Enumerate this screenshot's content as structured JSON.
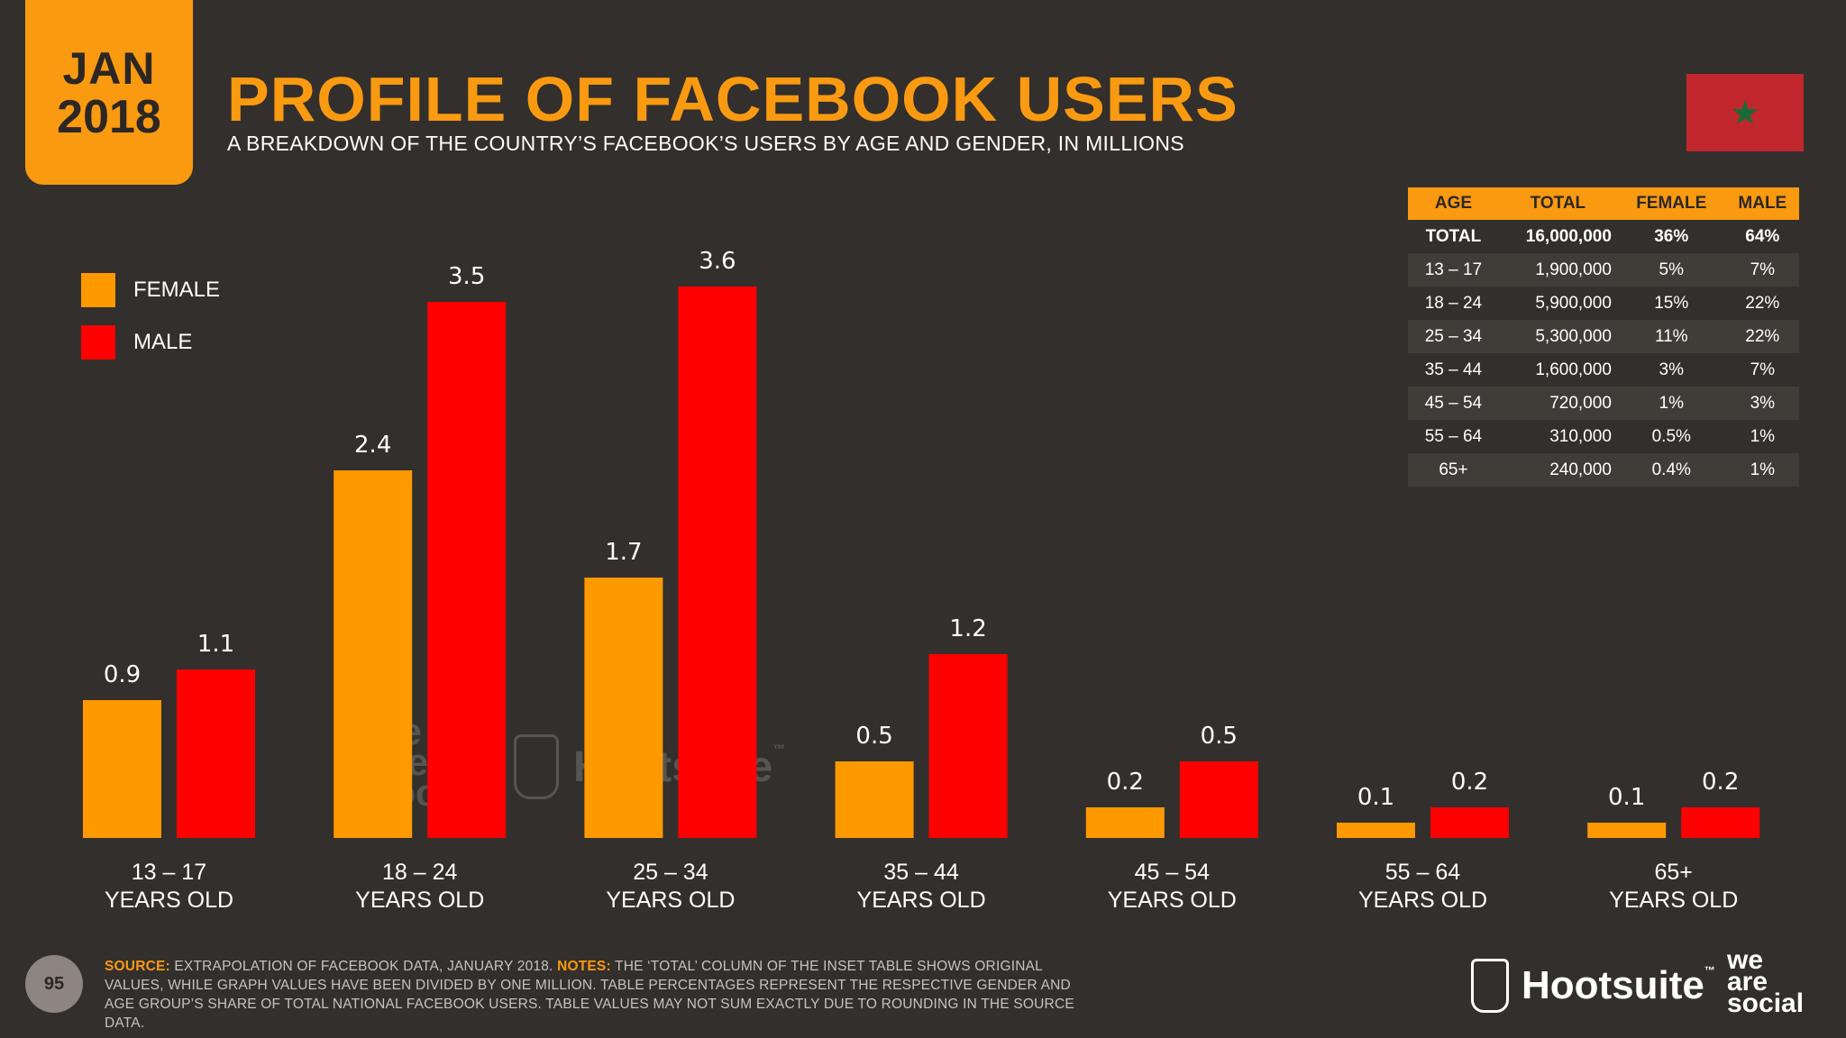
{
  "header": {
    "month": "JAN",
    "year": "2018",
    "title": "PROFILE OF FACEBOOK USERS",
    "subtitle": "A BREAKDOWN OF THE COUNTRY’S FACEBOOK’S USERS BY AGE AND GENDER, IN MILLIONS",
    "flag_icon": "morocco-flag-icon",
    "flag_color": "#c1272d",
    "star_color": "#1a6b35"
  },
  "legend": {
    "female": "FEMALE",
    "male": "MALE"
  },
  "colors": {
    "female": "#ff9900",
    "male": "#ff0000",
    "accent": "#fa9a11",
    "background": "#332f2c"
  },
  "chart_data": {
    "type": "bar",
    "categories": [
      [
        "13 – 17",
        "YEARS OLD"
      ],
      [
        "18 – 24",
        "YEARS OLD"
      ],
      [
        "25 – 34",
        "YEARS OLD"
      ],
      [
        "35 – 44",
        "YEARS OLD"
      ],
      [
        "45 – 54",
        "YEARS OLD"
      ],
      [
        "55 – 64",
        "YEARS OLD"
      ],
      [
        "65+",
        "YEARS OLD"
      ]
    ],
    "series": [
      {
        "name": "FEMALE",
        "values": [
          0.9,
          2.4,
          1.7,
          0.5,
          0.2,
          0.1,
          0.1
        ],
        "color": "#ff9900"
      },
      {
        "name": "MALE",
        "values": [
          1.1,
          3.5,
          3.6,
          1.2,
          0.5,
          0.2,
          0.2
        ],
        "color": "#ff0000"
      }
    ],
    "data_labels": [
      [
        "0.9",
        "2.4",
        "1.7",
        "0.5",
        "0.2",
        "0.1",
        "0.1"
      ],
      [
        "1.1",
        "3.5",
        "3.6",
        "1.2",
        "0.5",
        "0.2",
        "0.2"
      ]
    ],
    "ylim": [
      0,
      3.6
    ],
    "grid": false,
    "legend_position": "left"
  },
  "table": {
    "headers": [
      "AGE",
      "TOTAL",
      "FEMALE",
      "MALE"
    ],
    "rows": [
      [
        "TOTAL",
        "16,000,000",
        "36%",
        "64%"
      ],
      [
        "13 – 17",
        "1,900,000",
        "5%",
        "7%"
      ],
      [
        "18 – 24",
        "5,900,000",
        "15%",
        "22%"
      ],
      [
        "25 – 34",
        "5,300,000",
        "11%",
        "22%"
      ],
      [
        "35 – 44",
        "1,600,000",
        "3%",
        "7%"
      ],
      [
        "45 – 54",
        "720,000",
        "1%",
        "3%"
      ],
      [
        "55 – 64",
        "310,000",
        "0.5%",
        "1%"
      ],
      [
        "65+",
        "240,000",
        "0.4%",
        "1%"
      ]
    ]
  },
  "watermark": {
    "was_lines": [
      "we",
      "are",
      "social"
    ],
    "hootsuite": "Hootsuite",
    "tm": "™"
  },
  "footer": {
    "page_number": "95",
    "source_label": "SOURCE:",
    "source_text": " EXTRAPOLATION OF FACEBOOK DATA, JANUARY 2018. ",
    "notes_label": "NOTES:",
    "notes_text": " THE ‘TOTAL’ COLUMN OF THE INSET TABLE SHOWS ORIGINAL VALUES, WHILE GRAPH VALUES HAVE BEEN DIVIDED BY ONE MILLION. TABLE PERCENTAGES REPRESENT THE RESPECTIVE GENDER AND AGE GROUP’S SHARE OF TOTAL NATIONAL FACEBOOK USERS. TABLE VALUES MAY NOT SUM EXACTLY DUE TO ROUNDING IN THE SOURCE DATA.",
    "hootsuite_brand": "Hootsuite",
    "tm": "™",
    "was_brand": [
      "we",
      "are",
      "social"
    ]
  }
}
